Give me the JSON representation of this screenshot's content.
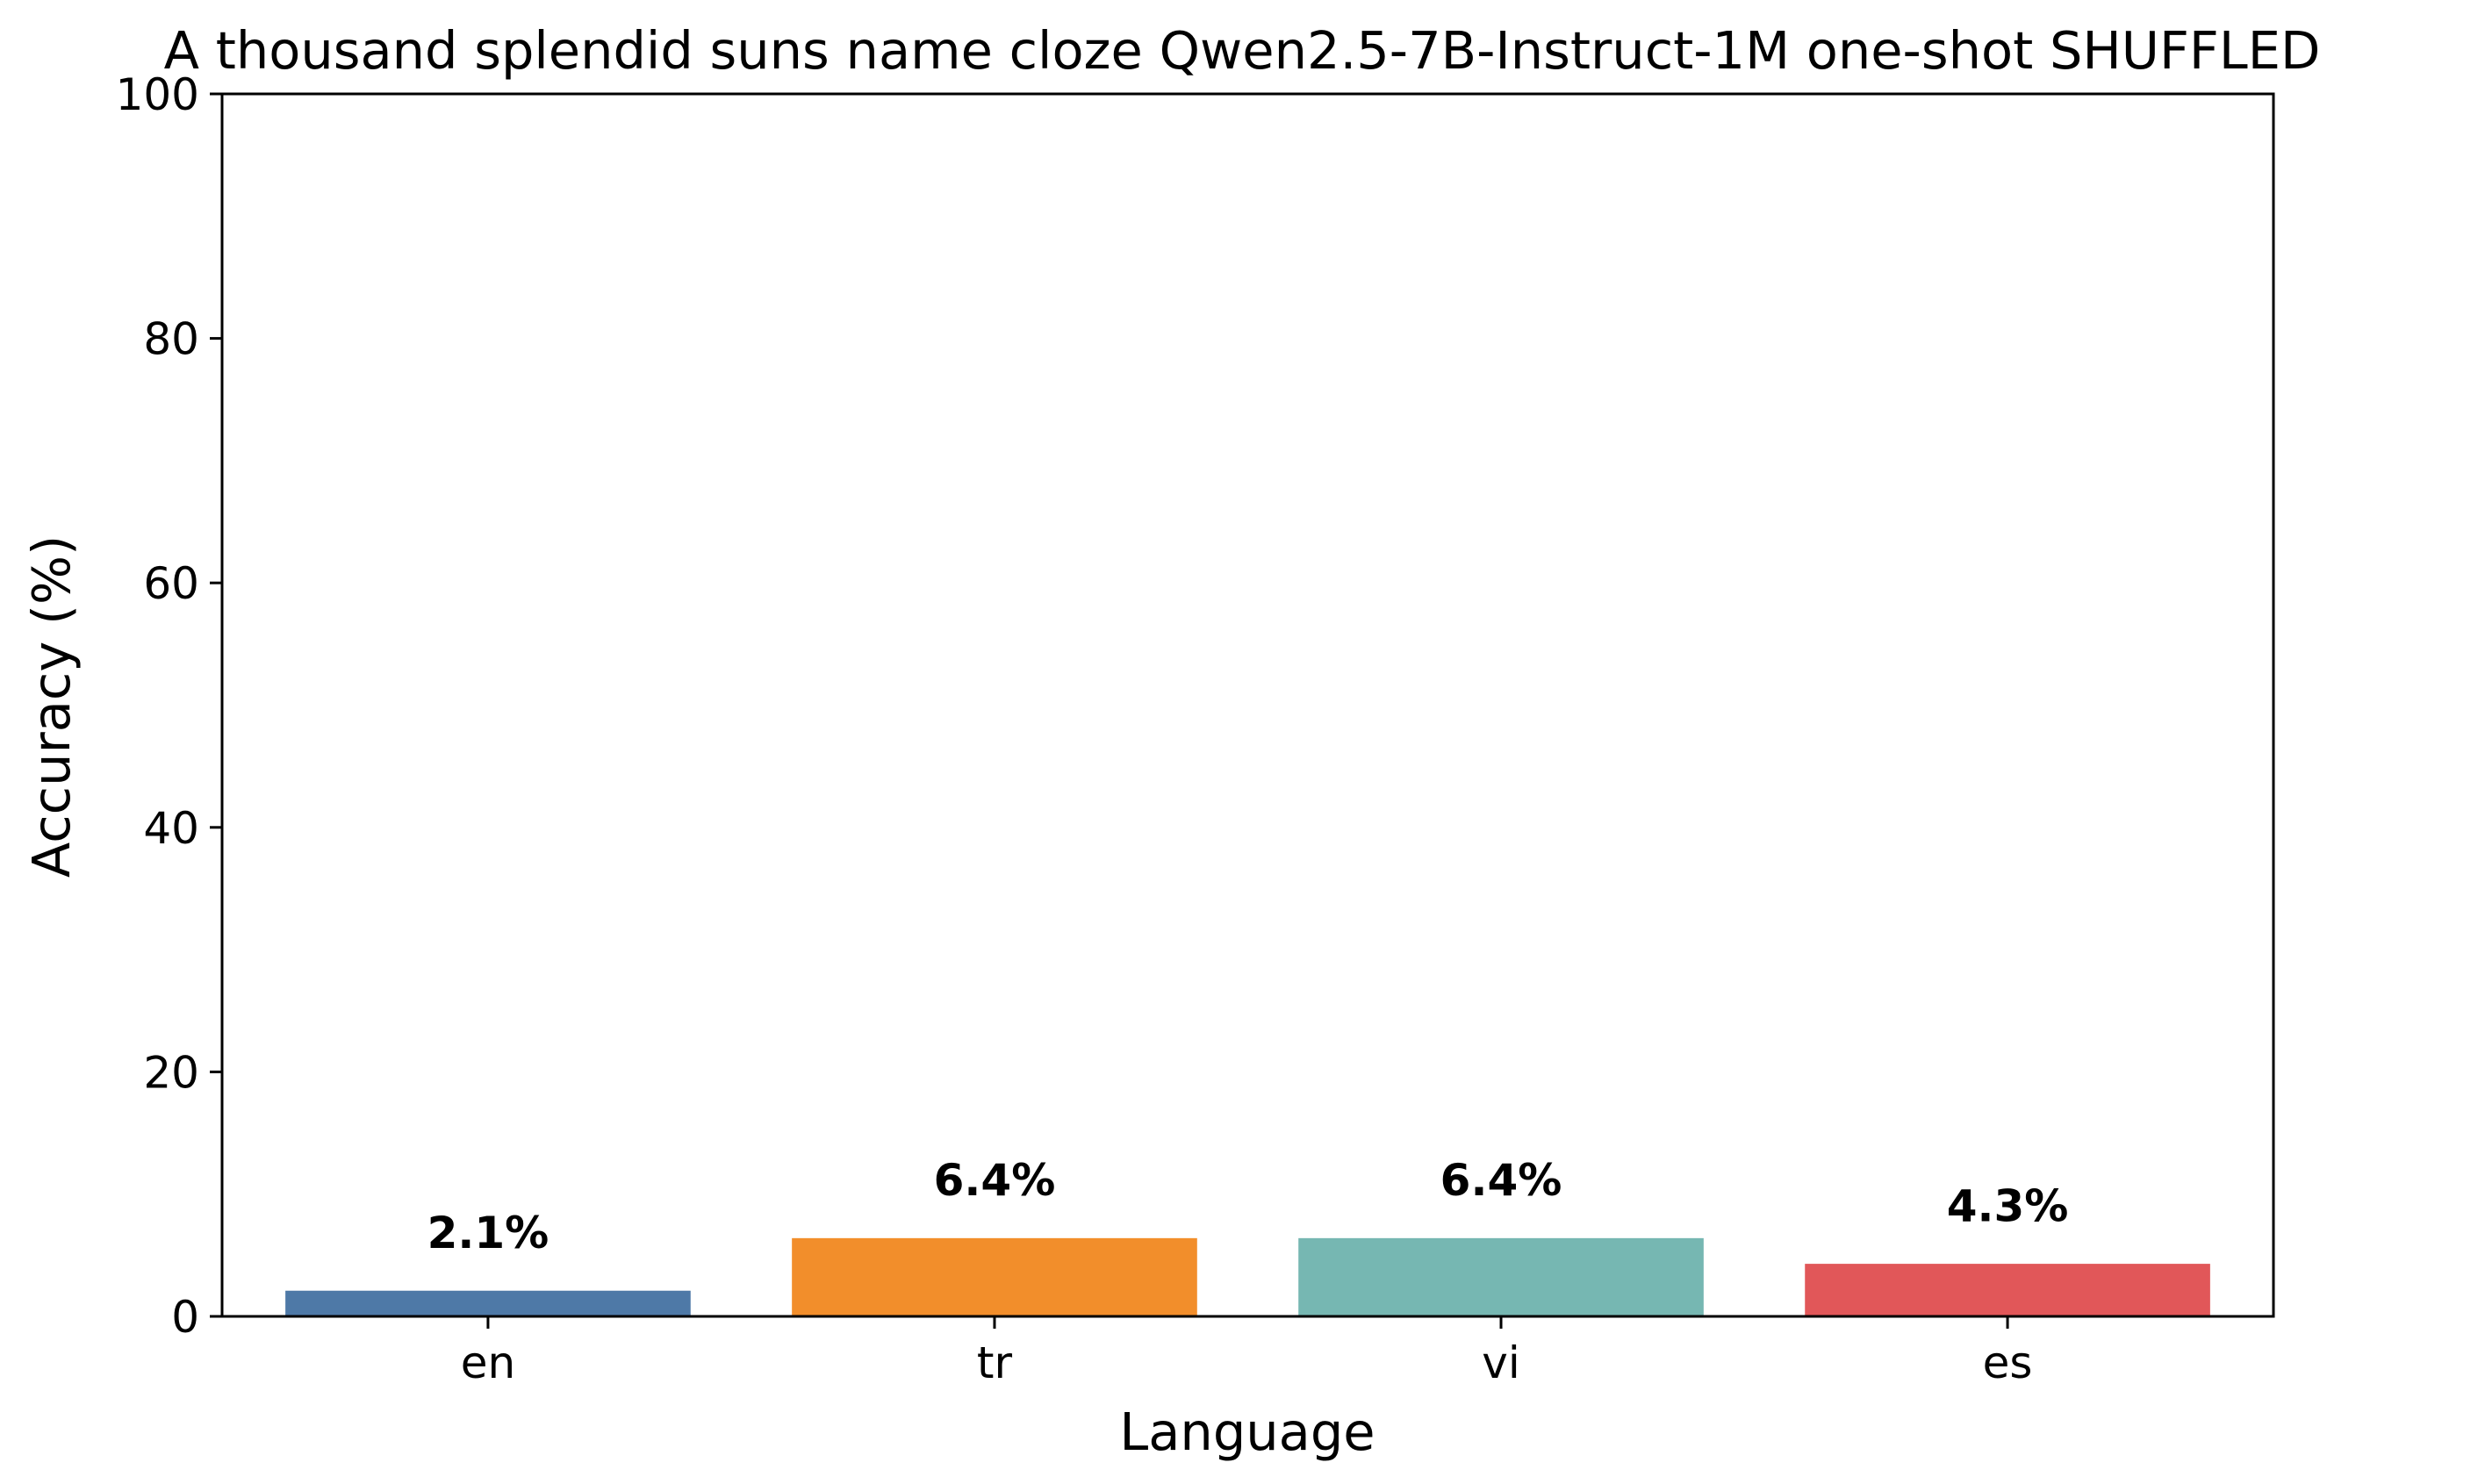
{
  "chart_data": {
    "type": "bar",
    "title": "A thousand splendid suns name cloze Qwen2.5-7B-Instruct-1M one-shot SHUFFLED",
    "xlabel": "Language",
    "ylabel": "Accuracy (%)",
    "categories": [
      "en",
      "tr",
      "vi",
      "es"
    ],
    "values": [
      2.1,
      6.4,
      6.4,
      4.3
    ],
    "data_labels": [
      "2.1%",
      "6.4%",
      "6.4%",
      "4.3%"
    ],
    "colors": [
      "#4e79a7",
      "#f28e2b",
      "#76b7b2",
      "#e15759"
    ],
    "ylim": [
      0,
      100
    ],
    "yticks": [
      0,
      20,
      40,
      60,
      80,
      100
    ],
    "ytick_labels": [
      "0",
      "20",
      "40",
      "60",
      "80",
      "100"
    ],
    "grid": false,
    "legend": "none"
  }
}
